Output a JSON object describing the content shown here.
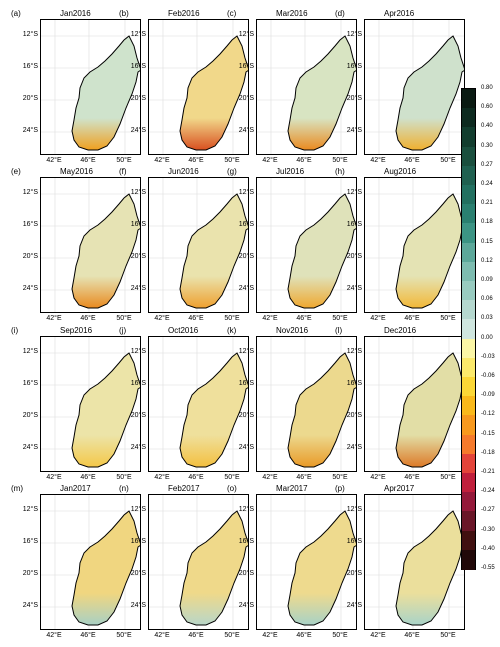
{
  "figure": {
    "y_ticks": [
      "12°S",
      "16°S",
      "20°S",
      "24°S"
    ],
    "x_ticks": [
      "42°E",
      "46°E",
      "50°E"
    ],
    "panels": [
      {
        "label": "(a)",
        "title": "Jan2016",
        "tint": "#cfe3cc",
        "south": "#f0a020"
      },
      {
        "label": "(b)",
        "title": "Feb2016",
        "tint": "#f1d88a",
        "south": "#d95020"
      },
      {
        "label": "(c)",
        "title": "Mar2016",
        "tint": "#d8e4c2",
        "south": "#ea8a20"
      },
      {
        "label": "(d)",
        "title": "Apr2016",
        "tint": "#cfe1cc",
        "south": "#f0b030"
      },
      {
        "label": "(e)",
        "title": "May2016",
        "tint": "#e6e3b4",
        "south": "#e98a20"
      },
      {
        "label": "(f)",
        "title": "Jun2016",
        "tint": "#eae3ad",
        "south": "#eea030"
      },
      {
        "label": "(g)",
        "title": "Jul2016",
        "tint": "#dfe2ba",
        "south": "#efa830"
      },
      {
        "label": "(h)",
        "title": "Aug2016",
        "tint": "#e4e3b4",
        "south": "#f2b838"
      },
      {
        "label": "(i)",
        "title": "Sep2016",
        "tint": "#ece4a8",
        "south": "#f4c848"
      },
      {
        "label": "(j)",
        "title": "Oct2016",
        "tint": "#efe09c",
        "south": "#f3c040"
      },
      {
        "label": "(k)",
        "title": "Nov2016",
        "tint": "#ecd98e",
        "south": "#e99a28"
      },
      {
        "label": "(l)",
        "title": "Dec2016",
        "tint": "#e2dea6",
        "south": "#dd7a28"
      },
      {
        "label": "(m)",
        "title": "Jan2017",
        "tint": "#f0d680",
        "south": "#a8d0c4"
      },
      {
        "label": "(n)",
        "title": "Feb2017",
        "tint": "#efd98a",
        "south": "#b8d6c8"
      },
      {
        "label": "(o)",
        "title": "Mar2017",
        "tint": "#eeda8e",
        "south": "#a8d2c6"
      },
      {
        "label": "(p)",
        "title": "Apr2017",
        "tint": "#ebdf9c",
        "south": "#a9d3c8"
      }
    ]
  },
  "colorbar": {
    "labels": [
      "0.80",
      "0.60",
      "0.40",
      "0.30",
      "0.27",
      "0.24",
      "0.21",
      "0.18",
      "0.15",
      "0.12",
      "0.09",
      "0.06",
      "0.03",
      "0.00",
      "-0.03",
      "-0.06",
      "-0.09",
      "-0.12",
      "-0.15",
      "-0.18",
      "-0.21",
      "-0.24",
      "-0.27",
      "-0.30",
      "-0.40",
      "-0.55"
    ],
    "colors": [
      "#0a1a12",
      "#0d2a1f",
      "#123d2e",
      "#1a4f3e",
      "#1f6050",
      "#227060",
      "#2a8070",
      "#3c9484",
      "#5ca89a",
      "#7dbcb0",
      "#98cbc0",
      "#b5d8cf",
      "#cfe6df",
      "#fbf6a6",
      "#fbe96b",
      "#fbd736",
      "#f9b91b",
      "#f7991e",
      "#f57a2c",
      "#e3443a",
      "#c01f3c",
      "#94193a",
      "#6a1628",
      "#411010",
      "#210909"
    ]
  }
}
